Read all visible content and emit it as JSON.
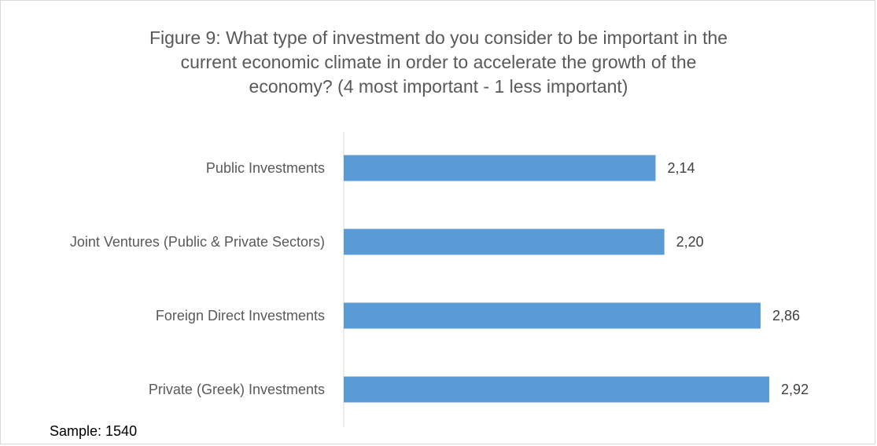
{
  "chart_data": {
    "type": "bar",
    "orientation": "horizontal",
    "title_lines": [
      "Figure 9: What type of investment do you consider to be important in the",
      "current economic climate in order to accelerate the growth of the",
      "economy? (4 most important - 1 less important)"
    ],
    "categories": [
      "Public Investments",
      "Joint Ventures (Public & Private Sectors)",
      "Foreign Direct Investments",
      "Private (Greek) Investments"
    ],
    "values": [
      2.14,
      2.2,
      2.86,
      2.92
    ],
    "value_labels": [
      "2,14",
      "2,20",
      "2,86",
      "2,92"
    ],
    "xlim": [
      0,
      3.4
    ],
    "bar_color": "#5b9bd5",
    "grid": false,
    "legend": false,
    "footnote": "Sample: 1540"
  }
}
